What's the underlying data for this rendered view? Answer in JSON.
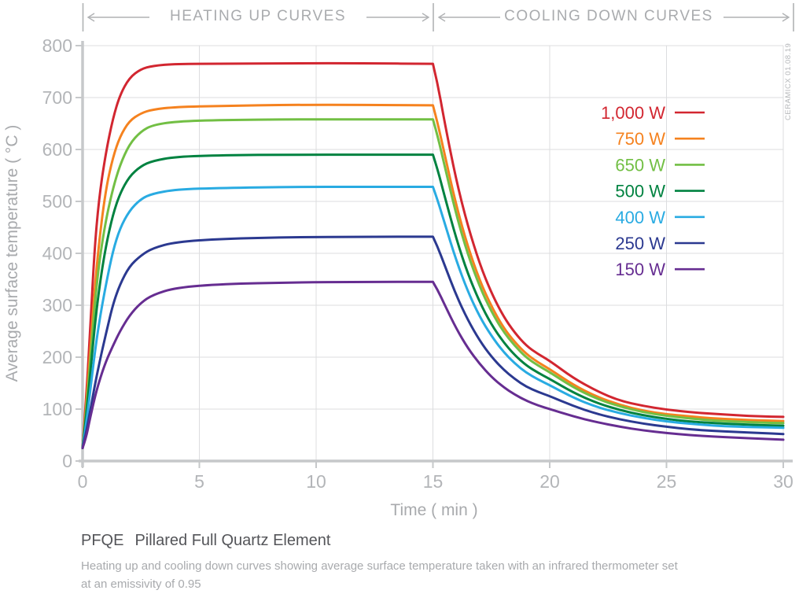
{
  "header": {
    "left_section": "HEATING UP CURVES",
    "right_section": "COOLING DOWN CURVES"
  },
  "watermark": "CERAMICX 01.08.19",
  "footer": {
    "code": "PFQE",
    "name": "Pillared Full Quartz Element",
    "subtitle_lines": [
      "Heating up and cooling down curves showing average surface temperature taken with an infrared thermometer set",
      "at an emissivity of 0.95"
    ]
  },
  "theme": {
    "grid": "#dcdddf",
    "axis": "#c6c8ca",
    "tick_text": "#b3b5b8",
    "muted_text": "#a8aaad",
    "header_graphics": "#b0b2b4"
  },
  "chart_data": {
    "type": "line",
    "title": "",
    "xlabel": "Time ( min )",
    "ylabel": "Average surface temperature ( °C )",
    "xlim": [
      0,
      30
    ],
    "ylim": [
      0,
      800
    ],
    "x_ticks": [
      0,
      5,
      10,
      15,
      20,
      25,
      30
    ],
    "y_ticks": [
      0,
      100,
      200,
      300,
      400,
      500,
      600,
      700,
      800
    ],
    "grid": true,
    "legend_position": "top-right",
    "heating_phase_minutes": [
      0,
      15
    ],
    "cooling_phase_minutes": [
      15,
      30
    ],
    "series": [
      {
        "name": "1000W",
        "label": "1,000 W",
        "color": "#d22630",
        "heating": [
          [
            0,
            25
          ],
          [
            0.15,
            120
          ],
          [
            0.3,
            230
          ],
          [
            0.5,
            400
          ],
          [
            0.7,
            505
          ],
          [
            1,
            595
          ],
          [
            1.3,
            660
          ],
          [
            1.6,
            705
          ],
          [
            2,
            738
          ],
          [
            2.5,
            755
          ],
          [
            3,
            761
          ],
          [
            4,
            765
          ],
          [
            6,
            765
          ],
          [
            9,
            766
          ],
          [
            12,
            766
          ],
          [
            15,
            765
          ]
        ],
        "cooling": [
          [
            15.2,
            728
          ],
          [
            15.5,
            652
          ],
          [
            16,
            540
          ],
          [
            16.5,
            452
          ],
          [
            17,
            380
          ],
          [
            17.5,
            324
          ],
          [
            18,
            280
          ],
          [
            18.5,
            247
          ],
          [
            19,
            222
          ],
          [
            19.5,
            206
          ],
          [
            20,
            193
          ],
          [
            21,
            160
          ],
          [
            22,
            135
          ],
          [
            23,
            116
          ],
          [
            24,
            106
          ],
          [
            25,
            99
          ],
          [
            26,
            94
          ],
          [
            27,
            91
          ],
          [
            28,
            88
          ],
          [
            29,
            86
          ],
          [
            30,
            85
          ]
        ]
      },
      {
        "name": "750W",
        "label": "750 W",
        "color": "#f5821f",
        "heating": [
          [
            0,
            25
          ],
          [
            0.15,
            105
          ],
          [
            0.3,
            195
          ],
          [
            0.5,
            320
          ],
          [
            0.7,
            420
          ],
          [
            1,
            525
          ],
          [
            1.3,
            585
          ],
          [
            1.6,
            625
          ],
          [
            2,
            655
          ],
          [
            2.5,
            670
          ],
          [
            3,
            677
          ],
          [
            4,
            682
          ],
          [
            6,
            684
          ],
          [
            9,
            686
          ],
          [
            12,
            686
          ],
          [
            15,
            685
          ]
        ],
        "cooling": [
          [
            15.2,
            652
          ],
          [
            15.5,
            590
          ],
          [
            16,
            492
          ],
          [
            16.5,
            412
          ],
          [
            17,
            348
          ],
          [
            17.5,
            298
          ],
          [
            18,
            258
          ],
          [
            18.5,
            229
          ],
          [
            19,
            206
          ],
          [
            19.5,
            190
          ],
          [
            20,
            177
          ],
          [
            21,
            147
          ],
          [
            22,
            124
          ],
          [
            23,
            108
          ],
          [
            24,
            97
          ],
          [
            25,
            90
          ],
          [
            26,
            86
          ],
          [
            27,
            82
          ],
          [
            28,
            80
          ],
          [
            29,
            78
          ],
          [
            30,
            77
          ]
        ]
      },
      {
        "name": "650W",
        "label": "650 W",
        "color": "#72bf44",
        "heating": [
          [
            0,
            25
          ],
          [
            0.15,
            95
          ],
          [
            0.3,
            175
          ],
          [
            0.5,
            290
          ],
          [
            0.7,
            380
          ],
          [
            1,
            465
          ],
          [
            1.3,
            525
          ],
          [
            1.6,
            570
          ],
          [
            2,
            610
          ],
          [
            2.5,
            635
          ],
          [
            3,
            647
          ],
          [
            4,
            654
          ],
          [
            6,
            657
          ],
          [
            9,
            658
          ],
          [
            12,
            658
          ],
          [
            15,
            658
          ]
        ],
        "cooling": [
          [
            15.2,
            627
          ],
          [
            15.5,
            568
          ],
          [
            16,
            474
          ],
          [
            16.5,
            397
          ],
          [
            17,
            336
          ],
          [
            17.5,
            288
          ],
          [
            18,
            250
          ],
          [
            18.5,
            222
          ],
          [
            19,
            199
          ],
          [
            19.5,
            184
          ],
          [
            20,
            171
          ],
          [
            21,
            142
          ],
          [
            22,
            120
          ],
          [
            23,
            105
          ],
          [
            24,
            94
          ],
          [
            25,
            87
          ],
          [
            26,
            82
          ],
          [
            27,
            78
          ],
          [
            28,
            76
          ],
          [
            29,
            74
          ],
          [
            30,
            73
          ]
        ]
      },
      {
        "name": "500W",
        "label": "500 W",
        "color": "#008240",
        "heating": [
          [
            0,
            25
          ],
          [
            0.15,
            85
          ],
          [
            0.3,
            155
          ],
          [
            0.5,
            250
          ],
          [
            0.7,
            330
          ],
          [
            1,
            415
          ],
          [
            1.3,
            475
          ],
          [
            1.6,
            515
          ],
          [
            2,
            548
          ],
          [
            2.5,
            568
          ],
          [
            3,
            578
          ],
          [
            4,
            586
          ],
          [
            6,
            589
          ],
          [
            9,
            590
          ],
          [
            12,
            590
          ],
          [
            15,
            590
          ]
        ],
        "cooling": [
          [
            15.2,
            562
          ],
          [
            15.5,
            510
          ],
          [
            16,
            428
          ],
          [
            16.5,
            360
          ],
          [
            17,
            306
          ],
          [
            17.5,
            263
          ],
          [
            18,
            230
          ],
          [
            18.5,
            204
          ],
          [
            19,
            184
          ],
          [
            19.5,
            170
          ],
          [
            20,
            158
          ],
          [
            21,
            132
          ],
          [
            22,
            112
          ],
          [
            23,
            98
          ],
          [
            24,
            88
          ],
          [
            25,
            81
          ],
          [
            26,
            76
          ],
          [
            27,
            73
          ],
          [
            28,
            71
          ],
          [
            29,
            69
          ],
          [
            30,
            68
          ]
        ]
      },
      {
        "name": "400W",
        "label": "400 W",
        "color": "#29abe2",
        "heating": [
          [
            0,
            25
          ],
          [
            0.15,
            70
          ],
          [
            0.3,
            125
          ],
          [
            0.5,
            200
          ],
          [
            0.7,
            265
          ],
          [
            1,
            340
          ],
          [
            1.3,
            405
          ],
          [
            1.6,
            448
          ],
          [
            2,
            482
          ],
          [
            2.5,
            505
          ],
          [
            3,
            515
          ],
          [
            4,
            523
          ],
          [
            6,
            526
          ],
          [
            9,
            528
          ],
          [
            12,
            528
          ],
          [
            15,
            528
          ]
        ],
        "cooling": [
          [
            15.2,
            503
          ],
          [
            15.5,
            458
          ],
          [
            16,
            386
          ],
          [
            16.5,
            326
          ],
          [
            17,
            278
          ],
          [
            17.5,
            241
          ],
          [
            18,
            211
          ],
          [
            18.5,
            188
          ],
          [
            19,
            170
          ],
          [
            19.5,
            157
          ],
          [
            20,
            146
          ],
          [
            21,
            122
          ],
          [
            22,
            104
          ],
          [
            23,
            92
          ],
          [
            24,
            83
          ],
          [
            25,
            76
          ],
          [
            26,
            72
          ],
          [
            27,
            68
          ],
          [
            28,
            66
          ],
          [
            29,
            65
          ],
          [
            30,
            64
          ]
        ]
      },
      {
        "name": "250W",
        "label": "250 W",
        "color": "#2b3990",
        "heating": [
          [
            0,
            25
          ],
          [
            0.15,
            55
          ],
          [
            0.3,
            90
          ],
          [
            0.5,
            140
          ],
          [
            0.7,
            185
          ],
          [
            1,
            245
          ],
          [
            1.3,
            302
          ],
          [
            1.6,
            340
          ],
          [
            2,
            375
          ],
          [
            2.5,
            396
          ],
          [
            3,
            410
          ],
          [
            4,
            422
          ],
          [
            6,
            428
          ],
          [
            9,
            431
          ],
          [
            12,
            432
          ],
          [
            15,
            432
          ]
        ],
        "cooling": [
          [
            15.2,
            413
          ],
          [
            15.5,
            377
          ],
          [
            16,
            319
          ],
          [
            16.5,
            271
          ],
          [
            17,
            232
          ],
          [
            17.5,
            201
          ],
          [
            18,
            177
          ],
          [
            18.5,
            158
          ],
          [
            19,
            143
          ],
          [
            19.5,
            133
          ],
          [
            20,
            125
          ],
          [
            21,
            106
          ],
          [
            22,
            91
          ],
          [
            23,
            80
          ],
          [
            24,
            72
          ],
          [
            25,
            66
          ],
          [
            26,
            61
          ],
          [
            27,
            58
          ],
          [
            28,
            56
          ],
          [
            29,
            54
          ],
          [
            30,
            52
          ]
        ]
      },
      {
        "name": "150W",
        "label": "150 W",
        "color": "#662d91",
        "heating": [
          [
            0,
            25
          ],
          [
            0.15,
            45
          ],
          [
            0.3,
            78
          ],
          [
            0.5,
            118
          ],
          [
            0.7,
            152
          ],
          [
            1,
            192
          ],
          [
            1.3,
            222
          ],
          [
            1.6,
            250
          ],
          [
            2,
            280
          ],
          [
            2.5,
            305
          ],
          [
            3,
            320
          ],
          [
            4,
            334
          ],
          [
            6,
            341
          ],
          [
            9,
            344
          ],
          [
            12,
            345
          ],
          [
            15,
            345
          ]
        ],
        "cooling": [
          [
            15.2,
            330
          ],
          [
            15.5,
            301
          ],
          [
            16,
            255
          ],
          [
            16.5,
            217
          ],
          [
            17,
            187
          ],
          [
            17.5,
            162
          ],
          [
            18,
            143
          ],
          [
            18.5,
            128
          ],
          [
            19,
            116
          ],
          [
            19.5,
            107
          ],
          [
            20,
            100
          ],
          [
            21,
            86
          ],
          [
            22,
            75
          ],
          [
            23,
            66
          ],
          [
            24,
            59
          ],
          [
            25,
            54
          ],
          [
            26,
            50
          ],
          [
            27,
            47
          ],
          [
            28,
            45
          ],
          [
            29,
            43
          ],
          [
            30,
            41
          ]
        ]
      }
    ]
  }
}
